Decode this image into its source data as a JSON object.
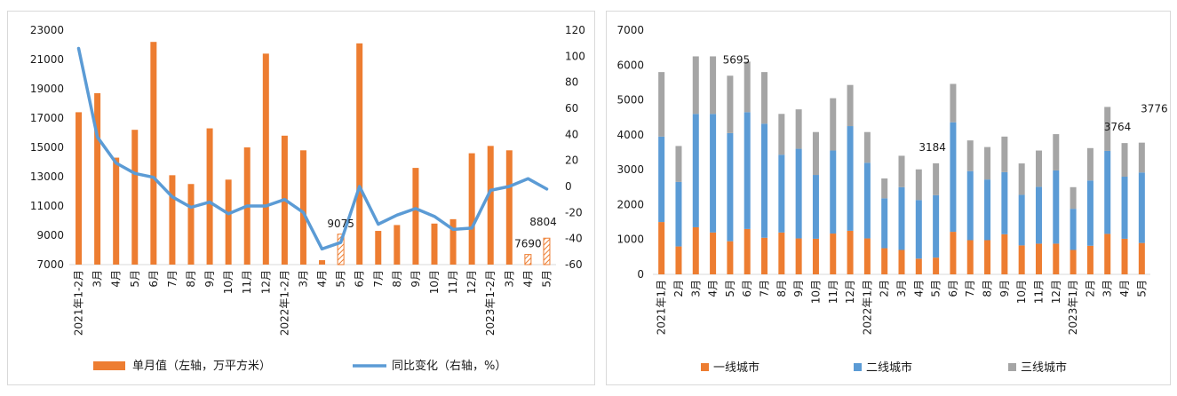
{
  "colors": {
    "orange": "#ED7D31",
    "blue": "#5B9BD5",
    "gray": "#A5A5A5",
    "line": "#5B9BD5",
    "axis": "#D9D9D9"
  },
  "chart_data": [
    {
      "type": "bar",
      "categories": [
        "2021年1-2月",
        "3月",
        "4月",
        "5月",
        "6月",
        "7月",
        "8月",
        "9月",
        "10月",
        "11月",
        "12月",
        "2022年1-2月",
        "3月",
        "4月",
        "5月",
        "6月",
        "7月",
        "8月",
        "9月",
        "10月",
        "11月",
        "12月",
        "2023年1-2月",
        "3月",
        "4月",
        "5月"
      ],
      "series": [
        {
          "name": "单月值（左轴，万平方米）",
          "type": "bar",
          "axis": "left",
          "values": [
            17400,
            18700,
            14300,
            16200,
            22200,
            13100,
            12500,
            16300,
            12800,
            15000,
            21400,
            15800,
            14800,
            7300,
            9075,
            22100,
            9300,
            9700,
            13600,
            9800,
            10100,
            14600,
            15100,
            14800,
            7690,
            8804
          ],
          "hatched_indices": [
            14,
            24,
            25
          ]
        },
        {
          "name": "同比变化（右轴，%）",
          "type": "line",
          "axis": "right",
          "values": [
            106,
            38,
            18,
            10,
            7,
            -8,
            -16,
            -12,
            -21,
            -15,
            -15,
            -10,
            -20,
            -48,
            -43,
            0,
            -29,
            -22,
            -17,
            -23,
            -33,
            -32,
            -3,
            0,
            6,
            -2
          ]
        }
      ],
      "annotations": [
        {
          "index": 14,
          "text": "9075"
        },
        {
          "index": 24,
          "text": "7690"
        },
        {
          "index": 25,
          "text": "8804"
        }
      ],
      "ylim_left": [
        7000,
        23000
      ],
      "yticks_left": [
        "23000",
        "21000",
        "19000",
        "17000",
        "15000",
        "13000",
        "11000",
        "9000",
        "7000"
      ],
      "ylim_right": [
        -60,
        120
      ],
      "yticks_right": [
        "120",
        "100",
        "80",
        "60",
        "40",
        "20",
        "0",
        "-20",
        "-40",
        "-60"
      ],
      "legend": {
        "position": "bottom",
        "labels": [
          "单月值（左轴，万平方米）",
          "同比变化（右轴，%）"
        ]
      },
      "grid": false
    },
    {
      "type": "bar",
      "stacked": true,
      "categories": [
        "2021年1月",
        "2月",
        "3月",
        "4月",
        "5月",
        "6月",
        "7月",
        "8月",
        "9月",
        "10月",
        "11月",
        "12月",
        "2022年1月",
        "2月",
        "3月",
        "4月",
        "5月",
        "6月",
        "7月",
        "8月",
        "9月",
        "10月",
        "11月",
        "12月",
        "2023年1月",
        "2月",
        "3月",
        "4月",
        "5月"
      ],
      "series": [
        {
          "name": "一线城市",
          "values": [
            1500,
            800,
            1350,
            1200,
            950,
            1300,
            1050,
            1200,
            1030,
            1020,
            1170,
            1250,
            1030,
            750,
            700,
            450,
            480,
            1220,
            980,
            980,
            1150,
            830,
            880,
            880,
            700,
            820,
            1160,
            1020,
            900
          ]
        },
        {
          "name": "二线城市",
          "values": [
            2450,
            1850,
            3250,
            3400,
            3100,
            3350,
            3270,
            2230,
            2570,
            1830,
            2380,
            3000,
            2170,
            1430,
            1800,
            1680,
            1790,
            3140,
            1980,
            1740,
            1780,
            1450,
            1630,
            2100,
            1180,
            1870,
            2380,
            1780,
            2020
          ]
        },
        {
          "name": "三线城市",
          "values": [
            1850,
            1030,
            1650,
            1650,
            1645,
            1450,
            1480,
            1170,
            1130,
            1230,
            1500,
            1180,
            880,
            570,
            900,
            880,
            914,
            1100,
            880,
            930,
            1020,
            900,
            1040,
            1040,
            620,
            930,
            1260,
            964,
            856
          ]
        }
      ],
      "annotations": [
        {
          "index": 4,
          "text": "5695"
        },
        {
          "index": 16,
          "text": "3184"
        },
        {
          "index": 27,
          "text": "3764"
        },
        {
          "index": 28,
          "text": "3776"
        }
      ],
      "ylim": [
        0,
        7000
      ],
      "yticks": [
        "7000",
        "6000",
        "5000",
        "4000",
        "3000",
        "2000",
        "1000",
        "0"
      ],
      "legend": {
        "position": "bottom",
        "labels": [
          "一线城市",
          "二线城市",
          "三线城市"
        ]
      },
      "grid": false
    }
  ]
}
